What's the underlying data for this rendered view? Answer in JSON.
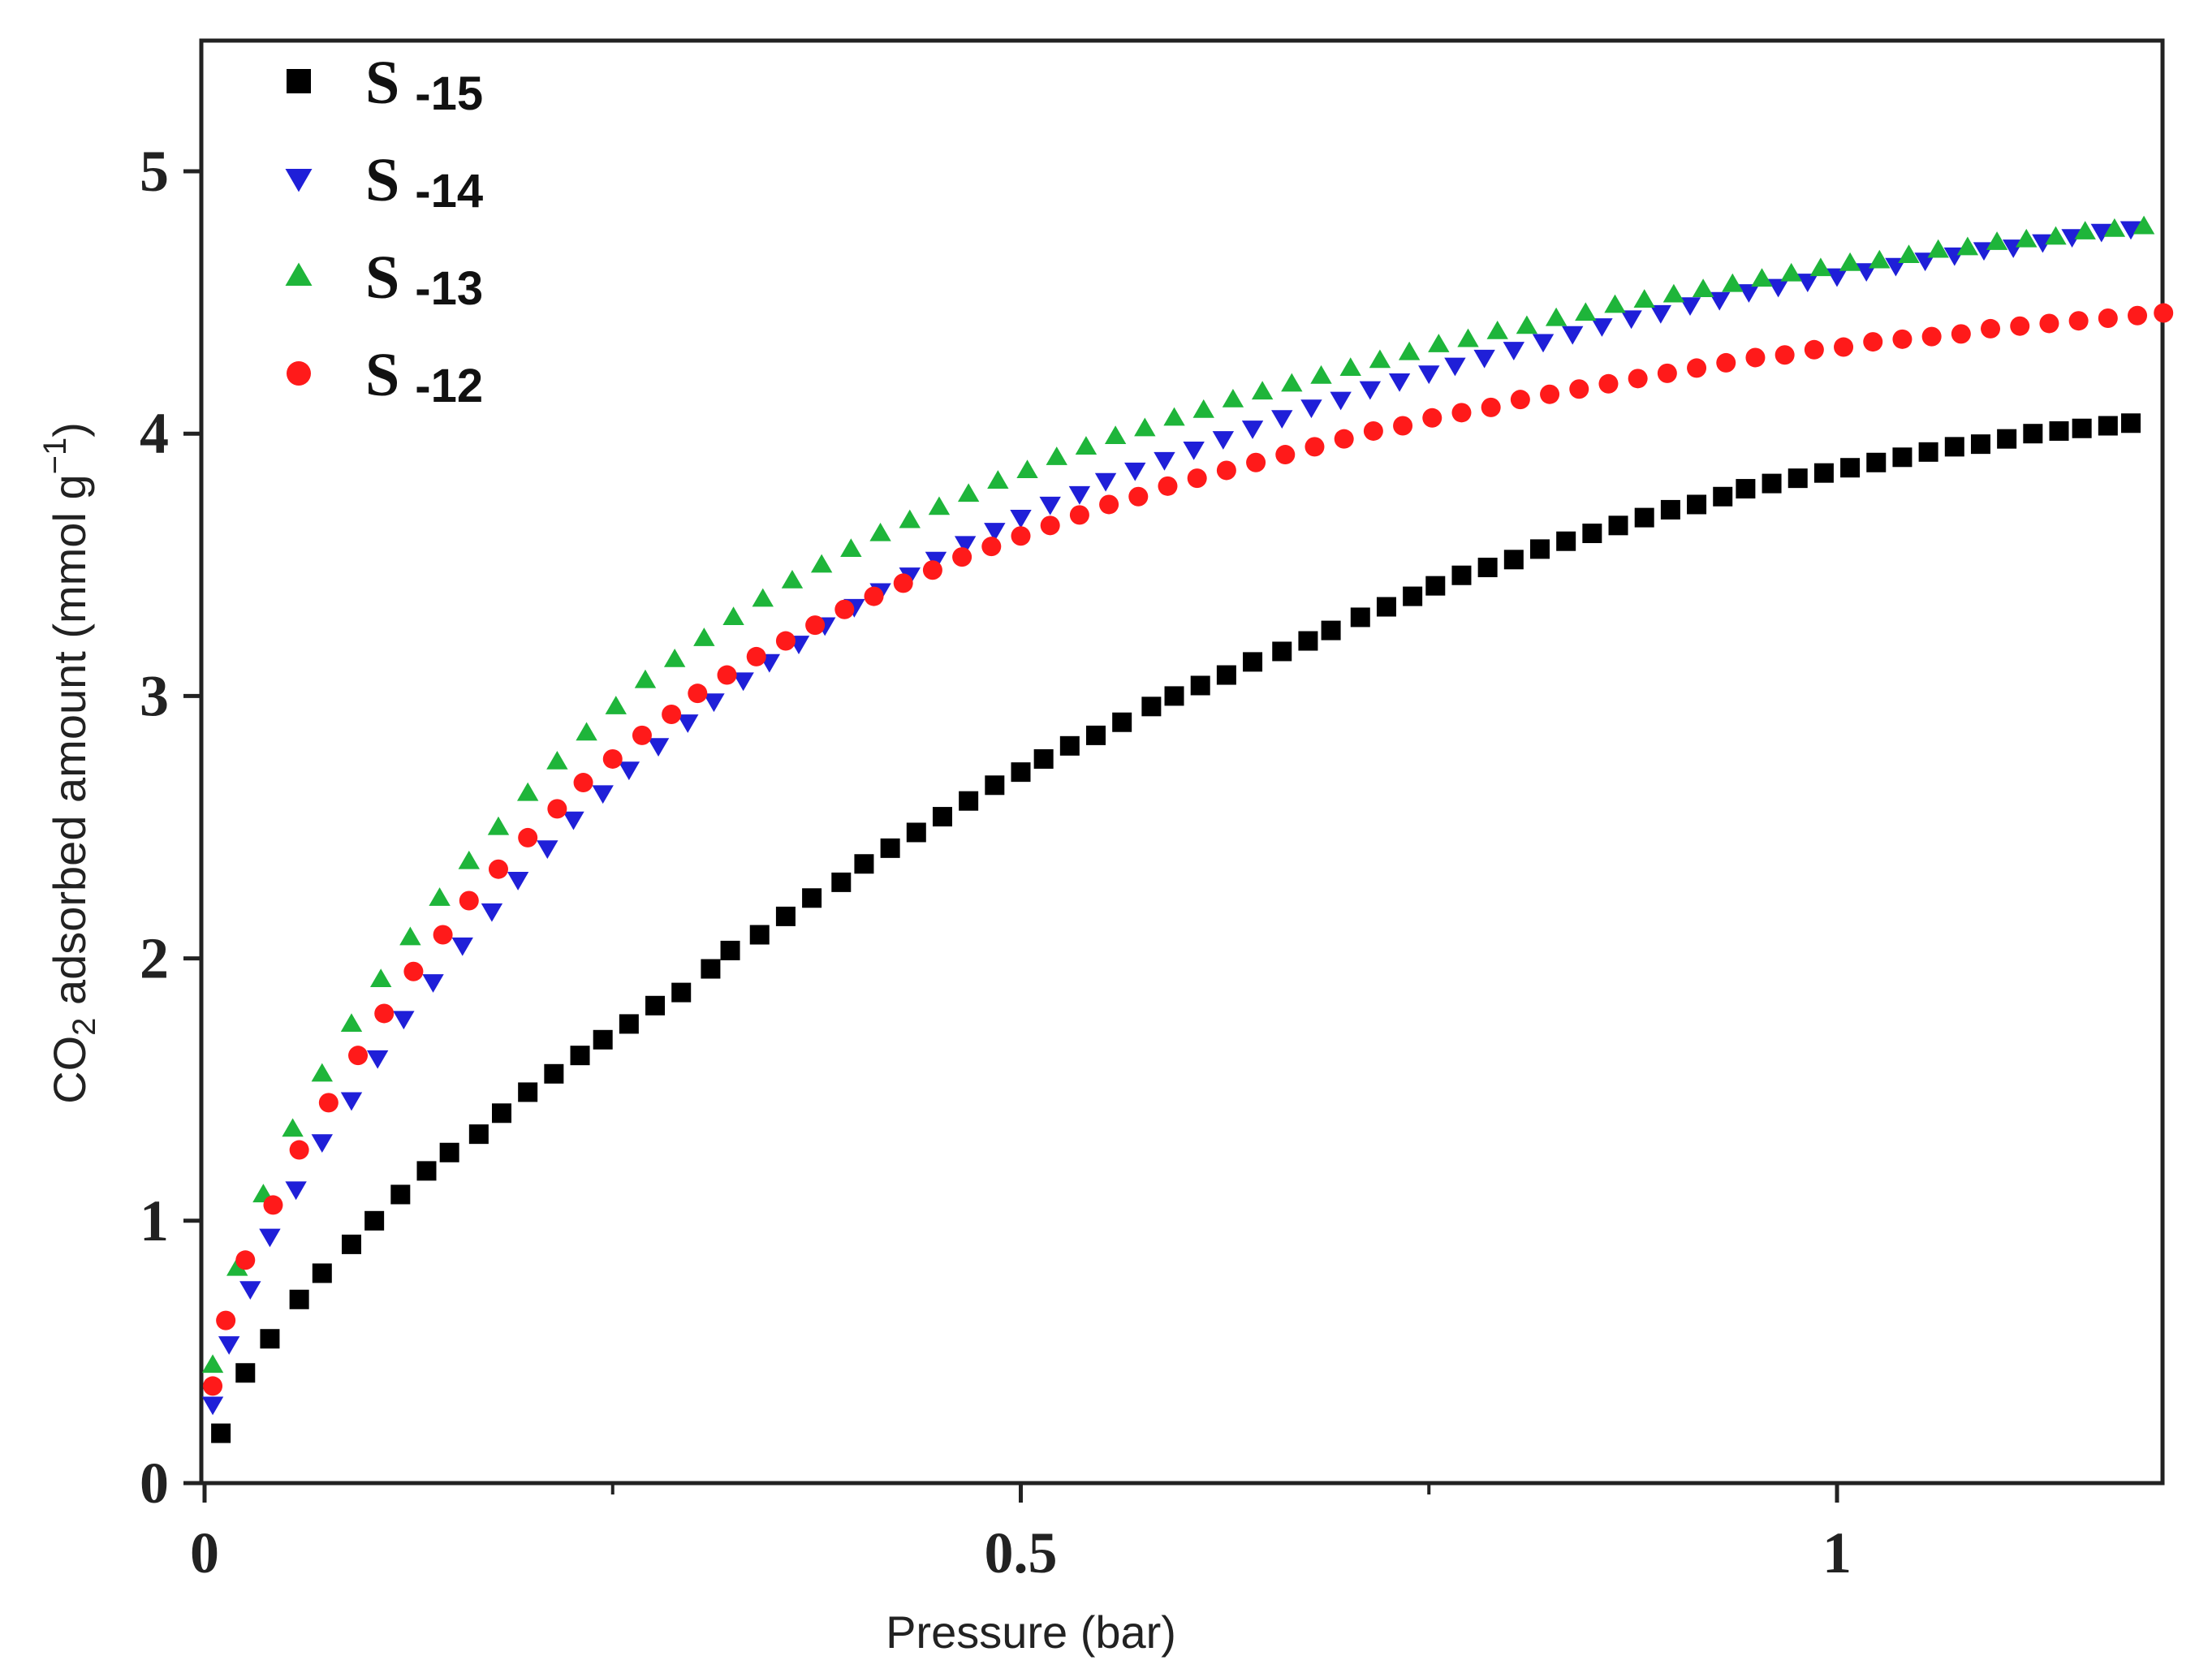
{
  "chart_data": {
    "type": "scatter",
    "title": "",
    "xlabel": "Pressure (bar)",
    "ylabel": {
      "prefix": "CO",
      "sub": "2",
      "middle": " adsorbed amount (mmol g",
      "sup": "−1",
      "suffix": ")"
    },
    "xlim": [
      0,
      1.2
    ],
    "ylim": [
      0,
      5.5
    ],
    "x_ticks": [
      0,
      0.5,
      1
    ],
    "x_tick_labels": [
      "0",
      "0.5",
      "1"
    ],
    "x_minor_ticks": [
      0.25,
      0.75
    ],
    "y_ticks": [
      0,
      1,
      2,
      3,
      4,
      5
    ],
    "y_tick_labels": [
      "0",
      "1",
      "2",
      "3",
      "4",
      "5"
    ],
    "grid": false,
    "legend_position": "top-left",
    "series": [
      {
        "name": "S -15",
        "label_main": "S",
        "label_suffix": "-15",
        "marker": "square",
        "color": "#000000",
        "x": [
          0.01,
          0.025,
          0.04,
          0.058,
          0.072,
          0.09,
          0.104,
          0.12,
          0.136,
          0.15,
          0.168,
          0.182,
          0.198,
          0.214,
          0.23,
          0.244,
          0.26,
          0.276,
          0.292,
          0.31,
          0.322,
          0.34,
          0.356,
          0.372,
          0.39,
          0.404,
          0.42,
          0.436,
          0.452,
          0.468,
          0.484,
          0.5,
          0.514,
          0.53,
          0.546,
          0.562,
          0.58,
          0.594,
          0.61,
          0.626,
          0.642,
          0.66,
          0.676,
          0.69,
          0.708,
          0.724,
          0.74,
          0.754,
          0.77,
          0.786,
          0.802,
          0.818,
          0.834,
          0.85,
          0.866,
          0.882,
          0.898,
          0.914,
          0.93,
          0.944,
          0.96,
          0.976,
          0.992,
          1.008,
          1.024,
          1.04,
          1.056,
          1.072,
          1.088,
          1.104,
          1.12,
          1.136,
          1.15,
          1.166,
          1.18
        ],
        "y": [
          0.19,
          0.42,
          0.55,
          0.7,
          0.8,
          0.91,
          1.0,
          1.1,
          1.19,
          1.26,
          1.33,
          1.41,
          1.49,
          1.56,
          1.63,
          1.69,
          1.75,
          1.82,
          1.87,
          1.96,
          2.03,
          2.09,
          2.16,
          2.23,
          2.29,
          2.36,
          2.42,
          2.48,
          2.54,
          2.6,
          2.66,
          2.71,
          2.76,
          2.81,
          2.85,
          2.9,
          2.96,
          3.0,
          3.04,
          3.08,
          3.13,
          3.17,
          3.21,
          3.25,
          3.3,
          3.34,
          3.38,
          3.42,
          3.46,
          3.49,
          3.52,
          3.56,
          3.59,
          3.62,
          3.65,
          3.68,
          3.71,
          3.73,
          3.76,
          3.79,
          3.81,
          3.83,
          3.85,
          3.87,
          3.89,
          3.91,
          3.93,
          3.95,
          3.96,
          3.98,
          4.0,
          4.01,
          4.02,
          4.03,
          4.04
        ]
      },
      {
        "name": "S -14",
        "label_main": "S",
        "label_suffix": "-14",
        "marker": "triangle-down",
        "color": "#1f1fd8",
        "x": [
          0.005,
          0.015,
          0.028,
          0.04,
          0.056,
          0.072,
          0.09,
          0.106,
          0.122,
          0.14,
          0.158,
          0.176,
          0.192,
          0.21,
          0.226,
          0.244,
          0.26,
          0.278,
          0.296,
          0.312,
          0.33,
          0.346,
          0.364,
          0.38,
          0.398,
          0.414,
          0.432,
          0.448,
          0.466,
          0.484,
          0.5,
          0.518,
          0.536,
          0.552,
          0.57,
          0.588,
          0.606,
          0.624,
          0.642,
          0.66,
          0.678,
          0.696,
          0.714,
          0.732,
          0.75,
          0.766,
          0.784,
          0.802,
          0.82,
          0.838,
          0.856,
          0.874,
          0.892,
          0.91,
          0.928,
          0.946,
          0.964,
          0.982,
          1.0,
          1.018,
          1.036,
          1.054,
          1.072,
          1.09,
          1.108,
          1.126,
          1.144,
          1.162,
          1.18
        ],
        "y": [
          0.3,
          0.53,
          0.74,
          0.94,
          1.12,
          1.3,
          1.46,
          1.62,
          1.77,
          1.91,
          2.05,
          2.18,
          2.3,
          2.42,
          2.53,
          2.63,
          2.72,
          2.81,
          2.9,
          2.98,
          3.06,
          3.13,
          3.2,
          3.27,
          3.34,
          3.4,
          3.46,
          3.52,
          3.58,
          3.63,
          3.68,
          3.73,
          3.77,
          3.82,
          3.86,
          3.9,
          3.94,
          3.98,
          4.02,
          4.06,
          4.1,
          4.13,
          4.17,
          4.2,
          4.23,
          4.26,
          4.29,
          4.32,
          4.35,
          4.38,
          4.41,
          4.44,
          4.46,
          4.49,
          4.51,
          4.54,
          4.56,
          4.58,
          4.6,
          4.62,
          4.64,
          4.66,
          4.68,
          4.7,
          4.71,
          4.73,
          4.75,
          4.77,
          4.78
        ]
      },
      {
        "name": "S -13",
        "label_main": "S",
        "label_suffix": "-13",
        "marker": "triangle-up",
        "color": "#1eb53a",
        "x": [
          0.005,
          0.02,
          0.036,
          0.054,
          0.072,
          0.09,
          0.108,
          0.126,
          0.144,
          0.162,
          0.18,
          0.198,
          0.216,
          0.234,
          0.252,
          0.27,
          0.288,
          0.306,
          0.324,
          0.342,
          0.36,
          0.378,
          0.396,
          0.414,
          0.432,
          0.45,
          0.468,
          0.486,
          0.504,
          0.522,
          0.54,
          0.558,
          0.576,
          0.594,
          0.612,
          0.63,
          0.648,
          0.666,
          0.684,
          0.702,
          0.72,
          0.738,
          0.756,
          0.774,
          0.792,
          0.81,
          0.828,
          0.846,
          0.864,
          0.882,
          0.9,
          0.918,
          0.936,
          0.954,
          0.972,
          0.99,
          1.008,
          1.026,
          1.044,
          1.062,
          1.08,
          1.098,
          1.116,
          1.134,
          1.152,
          1.17,
          1.188
        ],
        "y": [
          0.45,
          0.82,
          1.1,
          1.35,
          1.56,
          1.75,
          1.92,
          2.08,
          2.23,
          2.37,
          2.5,
          2.63,
          2.75,
          2.86,
          2.96,
          3.06,
          3.14,
          3.22,
          3.3,
          3.37,
          3.44,
          3.5,
          3.56,
          3.62,
          3.67,
          3.72,
          3.77,
          3.82,
          3.86,
          3.91,
          3.95,
          3.99,
          4.02,
          4.06,
          4.09,
          4.13,
          4.16,
          4.19,
          4.22,
          4.25,
          4.28,
          4.31,
          4.34,
          4.36,
          4.39,
          4.41,
          4.44,
          4.46,
          4.49,
          4.51,
          4.53,
          4.55,
          4.57,
          4.59,
          4.61,
          4.63,
          4.65,
          4.66,
          4.68,
          4.7,
          4.71,
          4.73,
          4.74,
          4.75,
          4.77,
          4.78,
          4.79
        ]
      },
      {
        "name": "S -12",
        "label_main": "S",
        "label_suffix": "-12",
        "marker": "circle",
        "color": "#ff1a1a",
        "x": [
          0.005,
          0.013,
          0.025,
          0.042,
          0.058,
          0.076,
          0.094,
          0.11,
          0.128,
          0.146,
          0.162,
          0.18,
          0.198,
          0.216,
          0.232,
          0.25,
          0.268,
          0.286,
          0.302,
          0.32,
          0.338,
          0.356,
          0.374,
          0.392,
          0.41,
          0.428,
          0.446,
          0.464,
          0.482,
          0.5,
          0.518,
          0.536,
          0.554,
          0.572,
          0.59,
          0.608,
          0.626,
          0.644,
          0.662,
          0.68,
          0.698,
          0.716,
          0.734,
          0.752,
          0.77,
          0.788,
          0.806,
          0.824,
          0.842,
          0.86,
          0.878,
          0.896,
          0.914,
          0.932,
          0.95,
          0.968,
          0.986,
          1.004,
          1.022,
          1.04,
          1.058,
          1.076,
          1.094,
          1.112,
          1.13,
          1.148,
          1.166,
          1.184,
          1.2
        ],
        "y": [
          0.37,
          0.62,
          0.85,
          1.06,
          1.27,
          1.45,
          1.63,
          1.79,
          1.95,
          2.09,
          2.22,
          2.34,
          2.46,
          2.57,
          2.67,
          2.76,
          2.85,
          2.93,
          3.01,
          3.08,
          3.15,
          3.21,
          3.27,
          3.33,
          3.38,
          3.43,
          3.48,
          3.53,
          3.57,
          3.61,
          3.65,
          3.69,
          3.73,
          3.76,
          3.8,
          3.83,
          3.86,
          3.89,
          3.92,
          3.95,
          3.98,
          4.01,
          4.03,
          4.06,
          4.08,
          4.1,
          4.13,
          4.15,
          4.17,
          4.19,
          4.21,
          4.23,
          4.25,
          4.27,
          4.29,
          4.3,
          4.32,
          4.33,
          4.35,
          4.36,
          4.37,
          4.38,
          4.4,
          4.41,
          4.42,
          4.43,
          4.44,
          4.45,
          4.46
        ]
      }
    ]
  }
}
